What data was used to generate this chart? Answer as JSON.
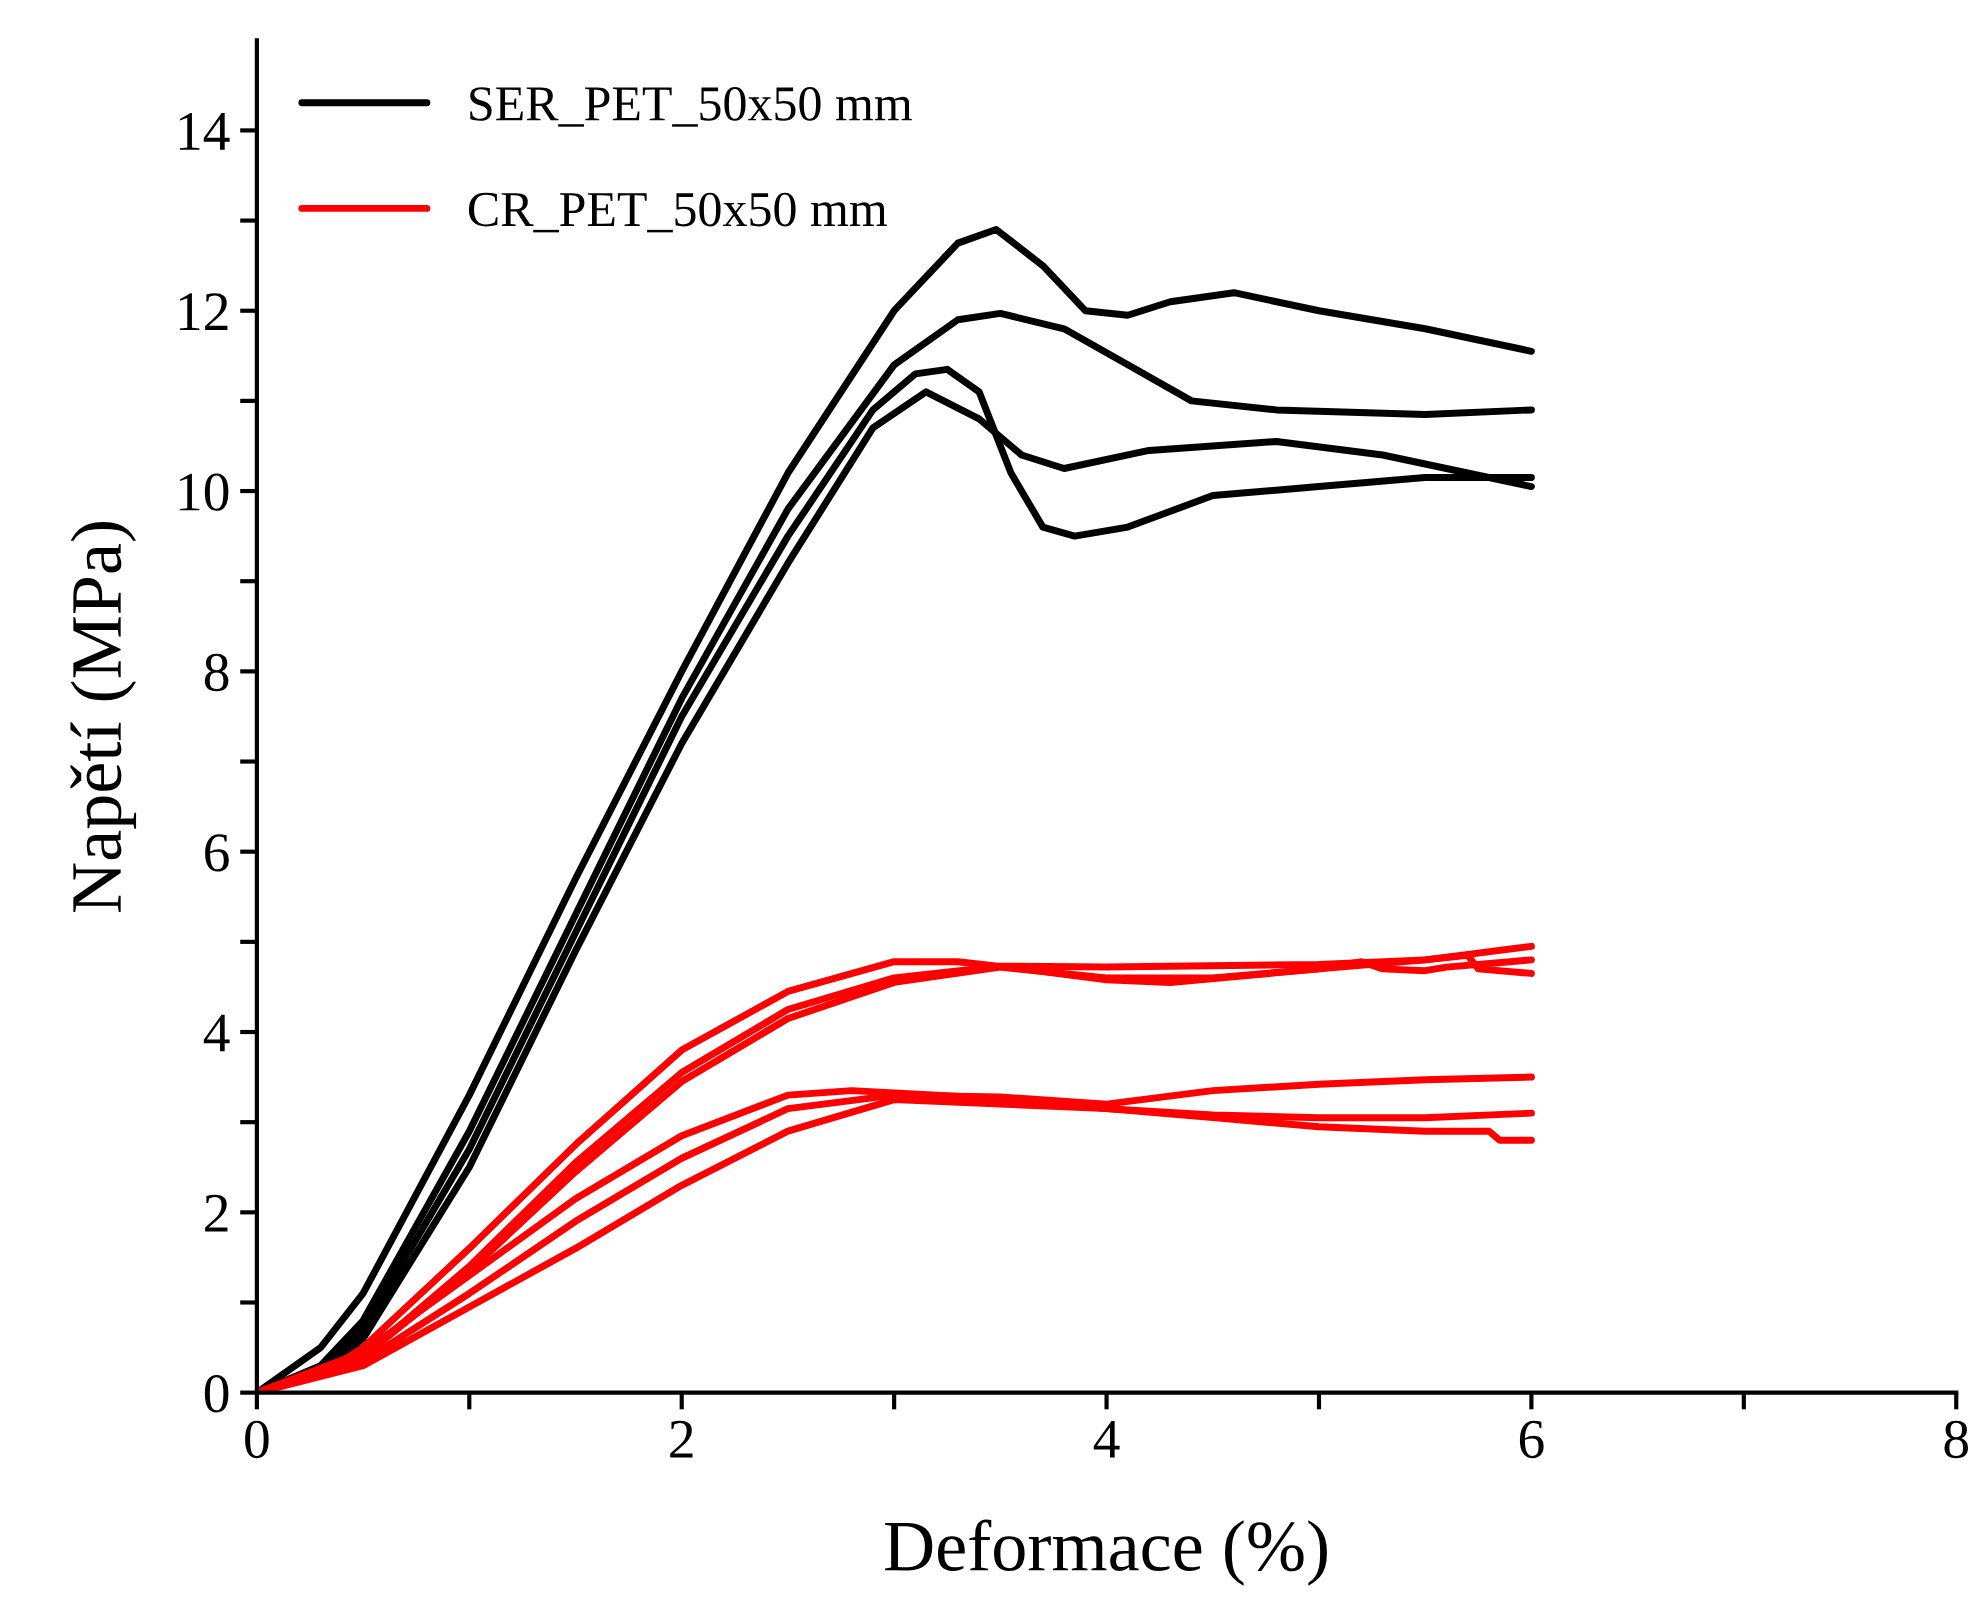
{
  "chart_data": {
    "type": "line",
    "xlabel": "Deformace (%)",
    "ylabel": "Napětí (MPa)",
    "xlim": [
      0,
      8
    ],
    "ylim": [
      0,
      15
    ],
    "xticks": [
      0,
      {
        "value": 1,
        "label": null
      },
      2,
      {
        "value": 3,
        "label": null
      },
      4,
      {
        "value": 5,
        "label": null
      },
      6,
      {
        "value": 7,
        "label": null
      },
      8
    ],
    "yticks": [
      0,
      {
        "value": 1,
        "label": null
      },
      2,
      {
        "value": 3,
        "label": null
      },
      4,
      {
        "value": 5,
        "label": null
      },
      6,
      {
        "value": 7,
        "label": null
      },
      8,
      {
        "value": 9,
        "label": null
      },
      10,
      {
        "value": 11,
        "label": null
      },
      12,
      {
        "value": 13,
        "label": null
      },
      14
    ],
    "grid": false,
    "legend": "top left",
    "marker": "none",
    "line_style": "solid",
    "series": [
      {
        "name": "SER_PET_50x50 mm",
        "color": "#000000",
        "x": [
          0,
          0.3,
          0.5,
          1,
          1.5,
          2,
          2.5,
          3,
          3.3,
          3.48,
          3.7,
          3.9,
          4.1,
          4.3,
          4.6,
          5,
          5.5,
          6
        ],
        "values": [
          0,
          0.5,
          1.1,
          3.3,
          5.7,
          8.0,
          10.2,
          12.0,
          12.75,
          12.9,
          12.5,
          12.0,
          11.95,
          12.1,
          12.2,
          12.0,
          11.8,
          11.55
        ]
      },
      {
        "color": "#000000",
        "x": [
          0,
          0.3,
          0.5,
          1,
          1.5,
          2,
          2.5,
          3,
          3.3,
          3.5,
          3.8,
          4.1,
          4.4,
          4.8,
          5.5,
          6
        ],
        "values": [
          0,
          0.3,
          0.8,
          2.9,
          5.3,
          7.7,
          9.8,
          11.4,
          11.9,
          11.97,
          11.8,
          11.4,
          11.0,
          10.9,
          10.85,
          10.9
        ]
      },
      {
        "color": "#000000",
        "x": [
          0,
          0.3,
          0.5,
          1,
          1.5,
          2,
          2.5,
          2.9,
          3.1,
          3.25,
          3.4,
          3.55,
          3.7,
          3.85,
          4.1,
          4.5,
          5,
          5.5,
          6
        ],
        "values": [
          0,
          0.25,
          0.7,
          2.7,
          5.1,
          7.5,
          9.5,
          10.9,
          11.3,
          11.35,
          11.1,
          10.2,
          9.6,
          9.5,
          9.6,
          9.95,
          10.05,
          10.15,
          10.15
        ]
      },
      {
        "color": "#000000",
        "x": [
          0,
          0.3,
          0.5,
          1,
          1.5,
          2,
          2.5,
          2.9,
          3.15,
          3.4,
          3.6,
          3.8,
          4.2,
          4.8,
          5.3,
          6
        ],
        "values": [
          0,
          0.2,
          0.6,
          2.5,
          4.9,
          7.2,
          9.2,
          10.7,
          11.1,
          10.8,
          10.4,
          10.25,
          10.45,
          10.55,
          10.4,
          10.05
        ]
      },
      {
        "name": "CR_PET_50x50 mm",
        "color": "#ff0000",
        "x": [
          0,
          0.3,
          0.5,
          1,
          1.5,
          2,
          2.5,
          3,
          3.3,
          3.6,
          4,
          4.3,
          5,
          5.5,
          6
        ],
        "values": [
          0,
          0.2,
          0.5,
          1.6,
          2.75,
          3.8,
          4.45,
          4.78,
          4.78,
          4.7,
          4.58,
          4.55,
          4.7,
          4.8,
          4.95
        ]
      },
      {
        "color": "#ff0000",
        "x": [
          0,
          0.5,
          1,
          1.5,
          2,
          2.5,
          3,
          3.5,
          4,
          5,
          5.5,
          5.7,
          5.75,
          6
        ],
        "values": [
          0,
          0.4,
          1.4,
          2.55,
          3.55,
          4.25,
          4.6,
          4.73,
          4.72,
          4.75,
          4.8,
          4.85,
          4.7,
          4.65
        ]
      },
      {
        "color": "#ff0000",
        "x": [
          0,
          0.5,
          1,
          1.5,
          2,
          2.5,
          3,
          3.5,
          4,
          4.5,
          5,
          5.2,
          5.3,
          5.5,
          5.6,
          5.9,
          6
        ],
        "values": [
          0,
          0.4,
          1.35,
          2.45,
          3.45,
          4.15,
          4.55,
          4.72,
          4.6,
          4.6,
          4.7,
          4.78,
          4.7,
          4.68,
          4.72,
          4.78,
          4.8
        ]
      },
      {
        "color": "#ff0000",
        "x": [
          0,
          0.5,
          1,
          1.5,
          2,
          2.5,
          2.8,
          3.2,
          3.6,
          4,
          4.5,
          5,
          5.5,
          6
        ],
        "values": [
          0,
          0.45,
          1.3,
          2.15,
          2.85,
          3.3,
          3.35,
          3.3,
          3.25,
          3.15,
          3.08,
          3.05,
          3.05,
          3.1
        ]
      },
      {
        "color": "#ff0000",
        "x": [
          0,
          0.5,
          1,
          1.5,
          2,
          2.5,
          3,
          3.5,
          4,
          4.5,
          5,
          5.5,
          6
        ],
        "values": [
          0,
          0.35,
          1.1,
          1.9,
          2.6,
          3.15,
          3.3,
          3.28,
          3.2,
          3.35,
          3.42,
          3.47,
          3.5
        ]
      },
      {
        "color": "#ff0000",
        "x": [
          0,
          0.5,
          1,
          1.5,
          2,
          2.5,
          3,
          3.5,
          4,
          4.5,
          5,
          5.5,
          5.8,
          5.85,
          6
        ],
        "values": [
          0,
          0.3,
          0.95,
          1.6,
          2.3,
          2.9,
          3.25,
          3.2,
          3.15,
          3.05,
          2.95,
          2.9,
          2.9,
          2.8,
          2.8
        ]
      }
    ]
  }
}
